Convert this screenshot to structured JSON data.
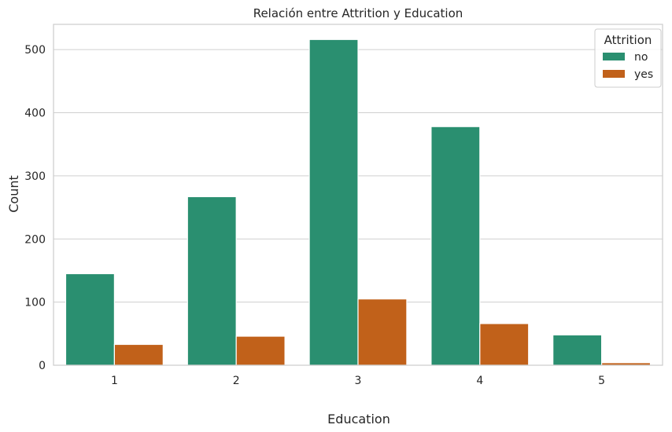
{
  "chart_data": {
    "type": "bar",
    "title": "Relación entre Attrition y Education",
    "xlabel": "Education",
    "ylabel": "Count",
    "categories": [
      "1",
      "2",
      "3",
      "4",
      "5"
    ],
    "series": [
      {
        "name": "no",
        "values": [
          145,
          267,
          516,
          378,
          48
        ]
      },
      {
        "name": "yes",
        "values": [
          33,
          46,
          105,
          66,
          4
        ]
      }
    ],
    "ylim": [
      0,
      540
    ],
    "yticks": [
      0,
      100,
      200,
      300,
      400,
      500
    ],
    "grid": true,
    "legend": {
      "title": "Attrition",
      "placement": "top-right"
    },
    "colors": {
      "no": "#2a8f70",
      "yes": "#c1611a",
      "grid": "#cfcfcf",
      "frame": "#cccccc"
    }
  }
}
